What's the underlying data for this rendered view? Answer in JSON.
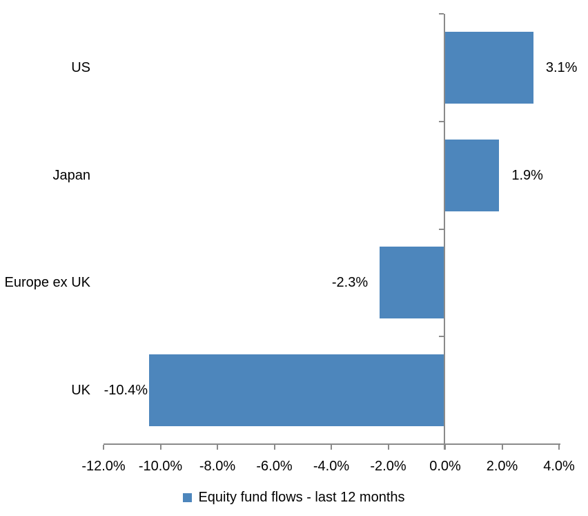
{
  "chart_data": {
    "type": "bar",
    "orientation": "horizontal",
    "title": "",
    "categories": [
      "US",
      "Japan",
      "Europe ex UK",
      "UK"
    ],
    "series": [
      {
        "name": "Equity fund flows - last 12 months",
        "values": [
          3.1,
          1.9,
          -2.3,
          -10.4
        ],
        "value_labels": [
          "3.1%",
          "1.9%",
          "-2.3%",
          "-10.4%"
        ]
      }
    ],
    "xlabel": "",
    "ylabel": "",
    "xlim": [
      -12,
      4
    ],
    "x_tick_values": [
      -12,
      -10,
      -8,
      -6,
      -4,
      -2,
      0,
      2,
      4
    ],
    "x_tick_labels": [
      "-12.0%",
      "-10.0%",
      "-8.0%",
      "-6.0%",
      "-4.0%",
      "-2.0%",
      "0.0%",
      "2.0%",
      "4.0%"
    ],
    "grid": false,
    "legend": "Equity fund flows - last 12 months",
    "legend_position": "bottom",
    "colors": {
      "bar": "#4d86bc",
      "axis": "#8a8a8a",
      "text": "#000000",
      "background": "#ffffff"
    }
  }
}
